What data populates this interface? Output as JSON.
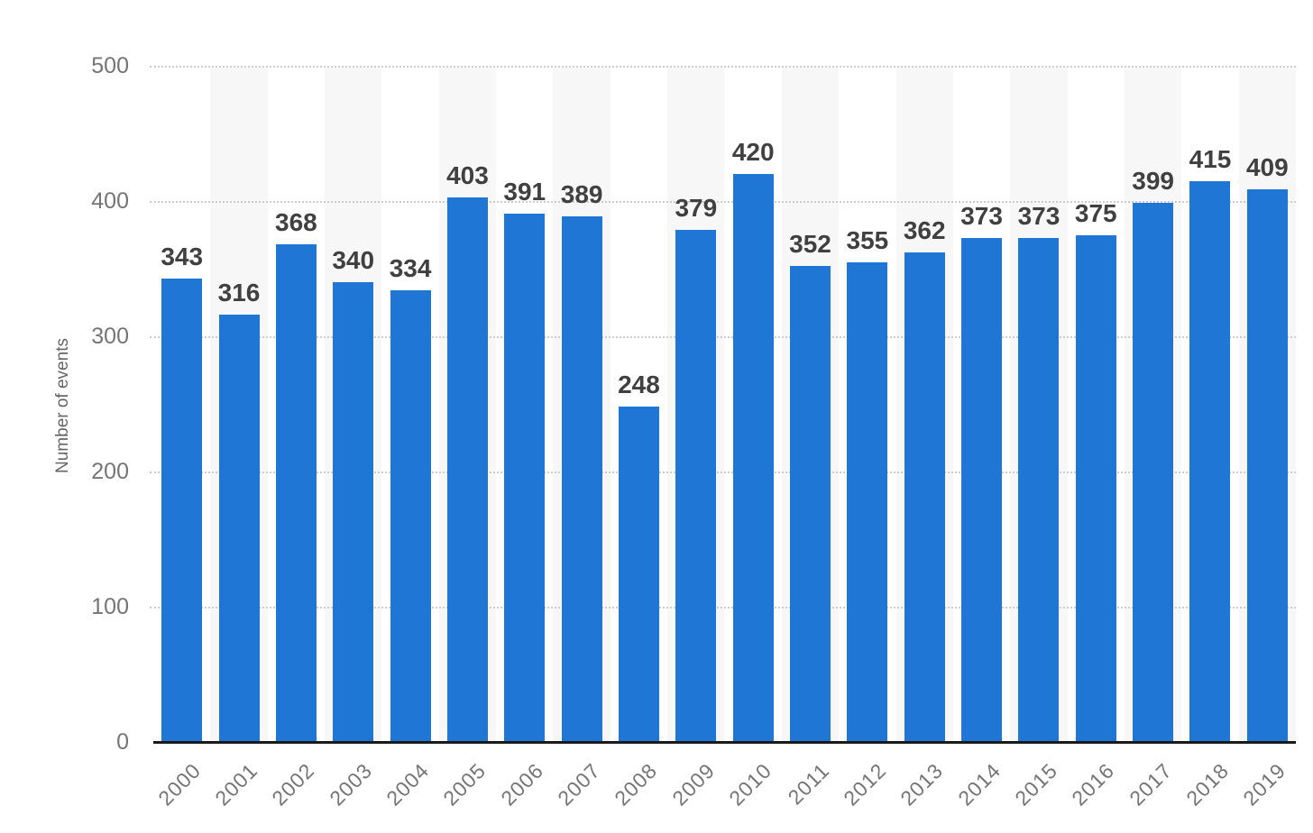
{
  "chart_data": {
    "type": "bar",
    "title": "",
    "categories": [
      "2000",
      "2001",
      "2002",
      "2003",
      "2004",
      "2005",
      "2006",
      "2007",
      "2008",
      "2009",
      "2010",
      "2011",
      "2012",
      "2013",
      "2014",
      "2015",
      "2016",
      "2017",
      "2018",
      "2019"
    ],
    "values": [
      343,
      316,
      368,
      340,
      334,
      403,
      391,
      389,
      248,
      379,
      420,
      352,
      355,
      362,
      373,
      373,
      375,
      399,
      415,
      409
    ],
    "xlabel": "",
    "ylabel": "Number of events",
    "ylim": [
      0,
      500
    ],
    "yticks": [
      0,
      100,
      200,
      300,
      400,
      500
    ],
    "grid": "horizontal-dotted",
    "legend_position": "none",
    "value_labels": true,
    "colors": {
      "bar": "#2076d4",
      "plot_band": "#f7f7f7",
      "gridline": "#cccccc",
      "axis_line": "#1a1a1a",
      "value_label": "#404040",
      "tick_label": "#757575",
      "axis_title": "#666666"
    }
  }
}
